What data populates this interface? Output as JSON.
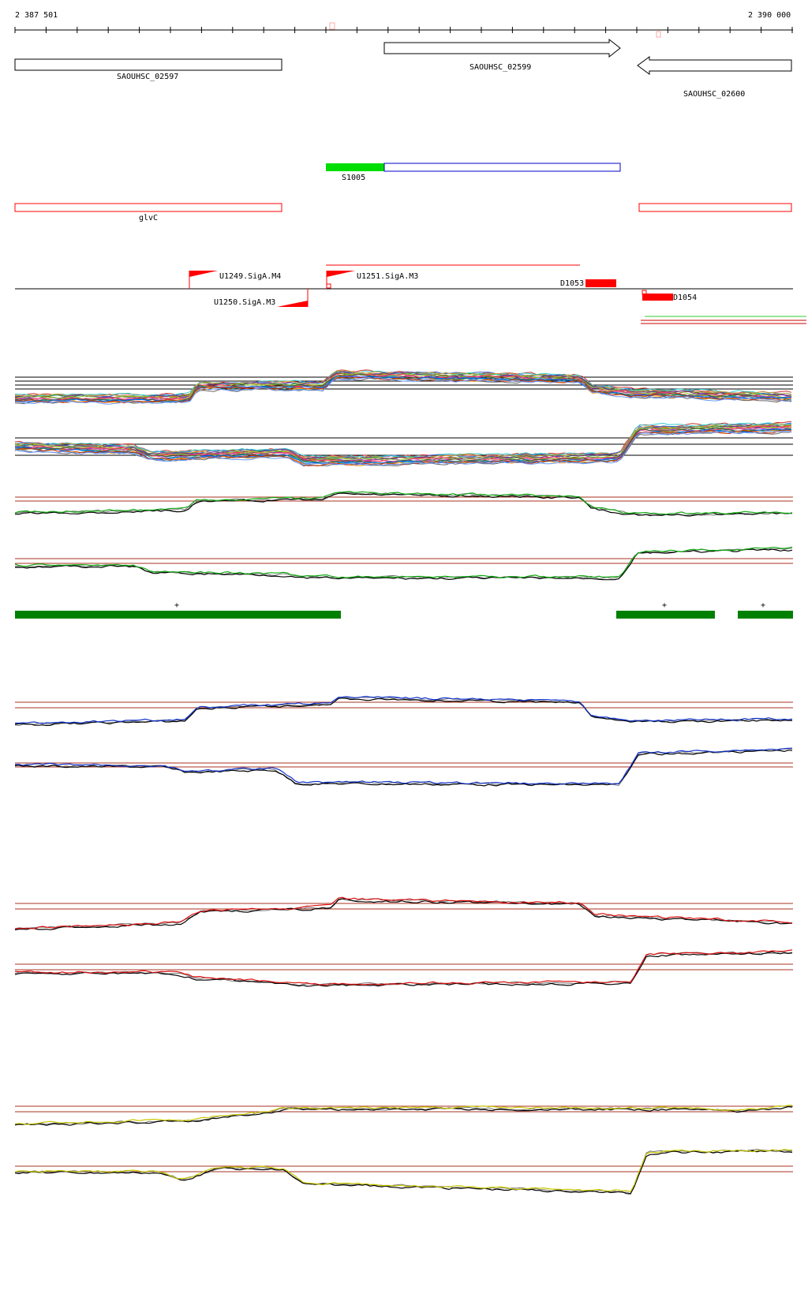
{
  "ruler": {
    "start_label": "2 387 501",
    "end_label": "2 390 000"
  },
  "genes": {
    "g1": "SAOUHSC_02597",
    "g2": "SAOUHSC_02599",
    "g3": "SAOUHSC_02600"
  },
  "segment_label": "S1005",
  "glvc_label": "glvC",
  "promoters": {
    "p1": "U1249.SigA.M4",
    "p2": "U1250.SigA.M3",
    "p3": "U1251.SigA.M3"
  },
  "terminators": {
    "t1": "D1053",
    "t2": "D1054"
  },
  "plus_marks": [
    "+",
    "+",
    "+"
  ],
  "colors": {
    "green_bar": "#008000",
    "segment_green": "#00dd00",
    "segment_blue": "#0000cc",
    "feature_red": "#ff0000",
    "threshold": "#aa3322",
    "blue_series": "#1133cc",
    "red_series": "#dd1111",
    "yellow_series": "#c8c800",
    "green_series": "#11aa11"
  }
}
